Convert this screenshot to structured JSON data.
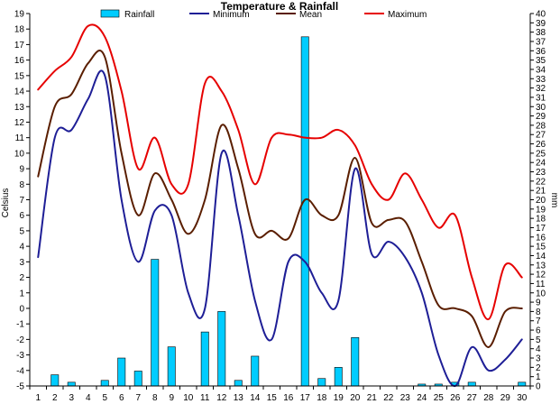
{
  "chart_data": {
    "type": "bar+line",
    "title": "Temperature & Rainfall",
    "ylabel": "Celsius",
    "y2label": "mm",
    "categories": [
      "1",
      "2",
      "3",
      "4",
      "5",
      "6",
      "7",
      "8",
      "9",
      "10",
      "11",
      "12",
      "13",
      "14",
      "15",
      "16",
      "17",
      "18",
      "19",
      "20",
      "21",
      "22",
      "23",
      "24",
      "25",
      "26",
      "27",
      "28",
      "29",
      "30"
    ],
    "ylim": [
      -5,
      19
    ],
    "y2lim": [
      0,
      40
    ],
    "grid": false,
    "legend_position": "top",
    "series": [
      {
        "name": "Rainfall",
        "kind": "bar",
        "axis": "right",
        "color": "#00ccff",
        "values": [
          0,
          1.2,
          0.4,
          0,
          0.6,
          3,
          1.6,
          13.6,
          4.2,
          0,
          5.8,
          8,
          0.6,
          3.2,
          0,
          0,
          37.5,
          0.8,
          2,
          5.2,
          0,
          0,
          0,
          0.2,
          0.2,
          0.4,
          0.4,
          0,
          0,
          0.4
        ]
      },
      {
        "name": "Minimum",
        "kind": "line",
        "axis": "left",
        "color": "#1e1e96",
        "values": [
          3.3,
          11,
          11.5,
          13.5,
          15,
          7,
          3,
          6.3,
          6,
          1,
          0,
          10,
          6,
          0.5,
          -2,
          3,
          3,
          1,
          0.5,
          9,
          3.5,
          4.3,
          3.3,
          1,
          -3,
          -5,
          -2.5,
          -4,
          -3.3,
          -2
        ]
      },
      {
        "name": "Mean",
        "kind": "line",
        "axis": "left",
        "color": "#5a1e00",
        "values": [
          8.5,
          13,
          13.8,
          15.8,
          16.2,
          10,
          6,
          8.7,
          7,
          4.8,
          7,
          11.8,
          9,
          4.8,
          5,
          4.5,
          7,
          6,
          6,
          9.7,
          5.5,
          5.7,
          5.6,
          3,
          0.2,
          0,
          -0.5,
          -2.5,
          -0.2,
          0
        ]
      },
      {
        "name": "Maximum",
        "kind": "line",
        "axis": "left",
        "color": "#e60000",
        "values": [
          14.1,
          15.3,
          16.2,
          18.2,
          17.5,
          14,
          9,
          11,
          8,
          8,
          14.5,
          14,
          11.5,
          8,
          11,
          11.2,
          11,
          11,
          11.5,
          10.5,
          8,
          7,
          8.7,
          7,
          5.2,
          6,
          2,
          -0.7,
          2.8,
          2
        ]
      }
    ]
  }
}
